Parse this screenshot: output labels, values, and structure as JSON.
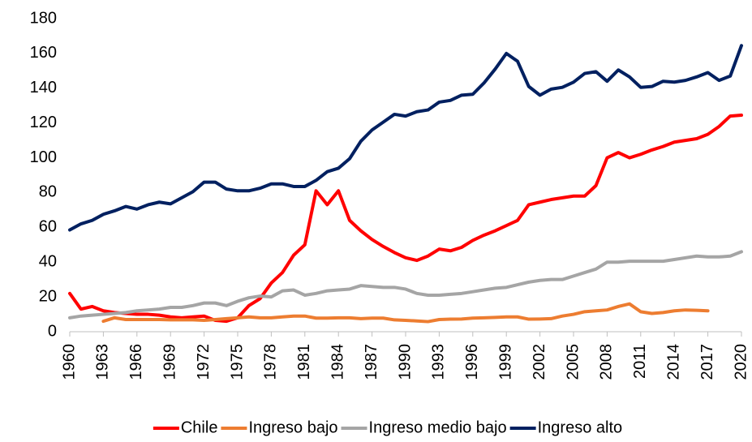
{
  "chart_data": {
    "type": "line",
    "x": [
      1960,
      1961,
      1962,
      1963,
      1964,
      1965,
      1966,
      1967,
      1968,
      1969,
      1970,
      1971,
      1972,
      1973,
      1974,
      1975,
      1976,
      1977,
      1978,
      1979,
      1980,
      1981,
      1982,
      1983,
      1984,
      1985,
      1986,
      1987,
      1988,
      1989,
      1990,
      1991,
      1992,
      1993,
      1994,
      1995,
      1996,
      1997,
      1998,
      1999,
      2000,
      2001,
      2002,
      2003,
      2004,
      2005,
      2006,
      2007,
      2008,
      2009,
      2010,
      2011,
      2012,
      2013,
      2014,
      2015,
      2016,
      2017,
      2018,
      2019,
      2020
    ],
    "xlim": [
      1960,
      2020
    ],
    "xticks": [
      1960,
      1963,
      1966,
      1969,
      1972,
      1975,
      1978,
      1981,
      1984,
      1987,
      1990,
      1993,
      1996,
      1999,
      2002,
      2005,
      2008,
      2011,
      2014,
      2017,
      2020
    ],
    "ylim": [
      0,
      180
    ],
    "yticks": [
      0,
      20,
      40,
      60,
      80,
      100,
      120,
      140,
      160,
      180
    ],
    "grid": false,
    "legend": "bottom",
    "series": [
      {
        "name": "Chile",
        "color": "#ff0000",
        "values": [
          22,
          13,
          14.5,
          12,
          11,
          10.5,
          10,
          10,
          9.5,
          8.5,
          8,
          8.5,
          9,
          6.5,
          6,
          8,
          15,
          19,
          28,
          34,
          44,
          50,
          81,
          73,
          81,
          64,
          58,
          53,
          49,
          45.5,
          42.5,
          41,
          43.5,
          47.5,
          46.5,
          48.5,
          52.5,
          55.5,
          58,
          61,
          64,
          73,
          74.5,
          76,
          77,
          78,
          78,
          84,
          100,
          103,
          100,
          102,
          104.5,
          106.5,
          109,
          110,
          111,
          113.5,
          118,
          124,
          124.5
        ]
      },
      {
        "name": "Ingreso bajo",
        "color": "#ed7d31",
        "values": [
          null,
          null,
          null,
          6,
          8,
          7,
          7,
          7,
          7,
          6.8,
          6.8,
          6.8,
          6.5,
          7,
          7.5,
          8,
          8.5,
          8,
          8,
          8.5,
          9,
          9,
          7.8,
          7.8,
          8,
          8,
          7.5,
          7.8,
          7.8,
          6.8,
          6.5,
          6.2,
          5.8,
          7,
          7.2,
          7.3,
          7.8,
          8,
          8.2,
          8.5,
          8.5,
          7.2,
          7.3,
          7.5,
          9,
          10,
          11.5,
          12,
          12.5,
          14.5,
          16,
          11.5,
          10.5,
          11,
          12,
          12.5,
          12.3,
          12,
          null,
          null,
          null
        ]
      },
      {
        "name": "Ingreso medio bajo",
        "color": "#a5a5a5",
        "values": [
          8,
          9,
          9.5,
          10,
          10.5,
          11,
          12,
          12.5,
          13,
          14,
          14,
          15,
          16.5,
          16.5,
          15,
          17.5,
          19.5,
          20.5,
          20,
          23.5,
          24,
          21,
          22,
          23.5,
          24,
          24.5,
          26.5,
          26,
          25.5,
          25.5,
          24.5,
          22,
          21,
          21,
          21.5,
          22,
          23,
          24,
          25,
          25.5,
          27,
          28.5,
          29.5,
          30,
          30,
          32,
          34,
          36,
          40,
          40,
          40.5,
          40.5,
          40.5,
          40.5,
          41.5,
          42.5,
          43.5,
          43,
          43,
          43.5,
          46
        ]
      },
      {
        "name": "Ingreso alto",
        "color": "#002060",
        "values": [
          58.5,
          62,
          64,
          67.5,
          69.5,
          72,
          70.5,
          73,
          74.5,
          73.5,
          77,
          80.5,
          86,
          86,
          82,
          81,
          81,
          82.5,
          85,
          85,
          83.5,
          83.5,
          87,
          92,
          94,
          99.5,
          109.5,
          116,
          120.5,
          125,
          124,
          126.5,
          127.5,
          132,
          133,
          136,
          136.5,
          143,
          151,
          160,
          155.5,
          141,
          136,
          139.5,
          140.5,
          143.5,
          148.5,
          149.5,
          144,
          150.5,
          146.5,
          140.5,
          141,
          144,
          143.5,
          144.5,
          146.5,
          149,
          144.5,
          147,
          164.5
        ]
      }
    ]
  }
}
